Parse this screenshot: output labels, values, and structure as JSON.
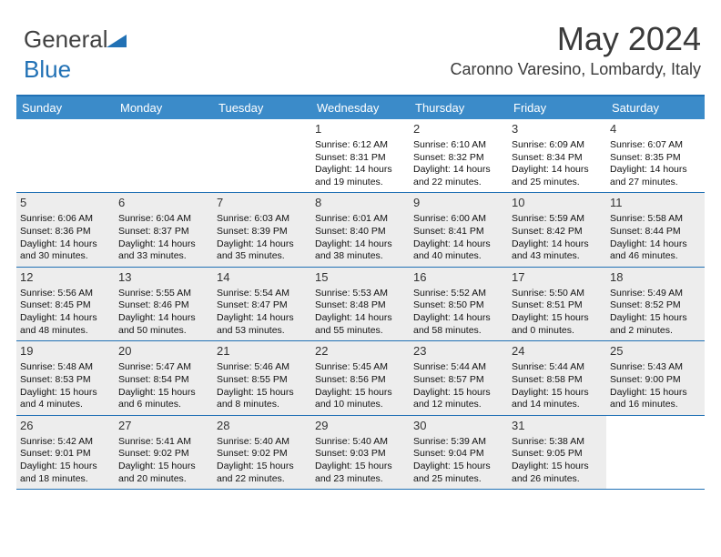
{
  "logo": {
    "part1": "General",
    "part2": "Blue"
  },
  "title": "May 2024",
  "location": "Caronno Varesino, Lombardy, Italy",
  "colors": {
    "header_bg": "#3b8bc9",
    "border": "#2171b5",
    "shaded": "#ededed",
    "white": "#ffffff"
  },
  "day_headers": [
    "Sunday",
    "Monday",
    "Tuesday",
    "Wednesday",
    "Thursday",
    "Friday",
    "Saturday"
  ],
  "weeks": [
    [
      {
        "num": "",
        "sunrise": "",
        "sunset": "",
        "daylight1": "",
        "daylight2": "",
        "shaded": false,
        "empty": true
      },
      {
        "num": "",
        "sunrise": "",
        "sunset": "",
        "daylight1": "",
        "daylight2": "",
        "shaded": false,
        "empty": true
      },
      {
        "num": "",
        "sunrise": "",
        "sunset": "",
        "daylight1": "",
        "daylight2": "",
        "shaded": false,
        "empty": true
      },
      {
        "num": "1",
        "sunrise": "Sunrise: 6:12 AM",
        "sunset": "Sunset: 8:31 PM",
        "daylight1": "Daylight: 14 hours",
        "daylight2": "and 19 minutes.",
        "shaded": false
      },
      {
        "num": "2",
        "sunrise": "Sunrise: 6:10 AM",
        "sunset": "Sunset: 8:32 PM",
        "daylight1": "Daylight: 14 hours",
        "daylight2": "and 22 minutes.",
        "shaded": false
      },
      {
        "num": "3",
        "sunrise": "Sunrise: 6:09 AM",
        "sunset": "Sunset: 8:34 PM",
        "daylight1": "Daylight: 14 hours",
        "daylight2": "and 25 minutes.",
        "shaded": false
      },
      {
        "num": "4",
        "sunrise": "Sunrise: 6:07 AM",
        "sunset": "Sunset: 8:35 PM",
        "daylight1": "Daylight: 14 hours",
        "daylight2": "and 27 minutes.",
        "shaded": false
      }
    ],
    [
      {
        "num": "5",
        "sunrise": "Sunrise: 6:06 AM",
        "sunset": "Sunset: 8:36 PM",
        "daylight1": "Daylight: 14 hours",
        "daylight2": "and 30 minutes.",
        "shaded": true
      },
      {
        "num": "6",
        "sunrise": "Sunrise: 6:04 AM",
        "sunset": "Sunset: 8:37 PM",
        "daylight1": "Daylight: 14 hours",
        "daylight2": "and 33 minutes.",
        "shaded": true
      },
      {
        "num": "7",
        "sunrise": "Sunrise: 6:03 AM",
        "sunset": "Sunset: 8:39 PM",
        "daylight1": "Daylight: 14 hours",
        "daylight2": "and 35 minutes.",
        "shaded": true
      },
      {
        "num": "8",
        "sunrise": "Sunrise: 6:01 AM",
        "sunset": "Sunset: 8:40 PM",
        "daylight1": "Daylight: 14 hours",
        "daylight2": "and 38 minutes.",
        "shaded": true
      },
      {
        "num": "9",
        "sunrise": "Sunrise: 6:00 AM",
        "sunset": "Sunset: 8:41 PM",
        "daylight1": "Daylight: 14 hours",
        "daylight2": "and 40 minutes.",
        "shaded": true
      },
      {
        "num": "10",
        "sunrise": "Sunrise: 5:59 AM",
        "sunset": "Sunset: 8:42 PM",
        "daylight1": "Daylight: 14 hours",
        "daylight2": "and 43 minutes.",
        "shaded": true
      },
      {
        "num": "11",
        "sunrise": "Sunrise: 5:58 AM",
        "sunset": "Sunset: 8:44 PM",
        "daylight1": "Daylight: 14 hours",
        "daylight2": "and 46 minutes.",
        "shaded": true
      }
    ],
    [
      {
        "num": "12",
        "sunrise": "Sunrise: 5:56 AM",
        "sunset": "Sunset: 8:45 PM",
        "daylight1": "Daylight: 14 hours",
        "daylight2": "and 48 minutes.",
        "shaded": true
      },
      {
        "num": "13",
        "sunrise": "Sunrise: 5:55 AM",
        "sunset": "Sunset: 8:46 PM",
        "daylight1": "Daylight: 14 hours",
        "daylight2": "and 50 minutes.",
        "shaded": true
      },
      {
        "num": "14",
        "sunrise": "Sunrise: 5:54 AM",
        "sunset": "Sunset: 8:47 PM",
        "daylight1": "Daylight: 14 hours",
        "daylight2": "and 53 minutes.",
        "shaded": true
      },
      {
        "num": "15",
        "sunrise": "Sunrise: 5:53 AM",
        "sunset": "Sunset: 8:48 PM",
        "daylight1": "Daylight: 14 hours",
        "daylight2": "and 55 minutes.",
        "shaded": true
      },
      {
        "num": "16",
        "sunrise": "Sunrise: 5:52 AM",
        "sunset": "Sunset: 8:50 PM",
        "daylight1": "Daylight: 14 hours",
        "daylight2": "and 58 minutes.",
        "shaded": true
      },
      {
        "num": "17",
        "sunrise": "Sunrise: 5:50 AM",
        "sunset": "Sunset: 8:51 PM",
        "daylight1": "Daylight: 15 hours",
        "daylight2": "and 0 minutes.",
        "shaded": true
      },
      {
        "num": "18",
        "sunrise": "Sunrise: 5:49 AM",
        "sunset": "Sunset: 8:52 PM",
        "daylight1": "Daylight: 15 hours",
        "daylight2": "and 2 minutes.",
        "shaded": true
      }
    ],
    [
      {
        "num": "19",
        "sunrise": "Sunrise: 5:48 AM",
        "sunset": "Sunset: 8:53 PM",
        "daylight1": "Daylight: 15 hours",
        "daylight2": "and 4 minutes.",
        "shaded": true
      },
      {
        "num": "20",
        "sunrise": "Sunrise: 5:47 AM",
        "sunset": "Sunset: 8:54 PM",
        "daylight1": "Daylight: 15 hours",
        "daylight2": "and 6 minutes.",
        "shaded": true
      },
      {
        "num": "21",
        "sunrise": "Sunrise: 5:46 AM",
        "sunset": "Sunset: 8:55 PM",
        "daylight1": "Daylight: 15 hours",
        "daylight2": "and 8 minutes.",
        "shaded": true
      },
      {
        "num": "22",
        "sunrise": "Sunrise: 5:45 AM",
        "sunset": "Sunset: 8:56 PM",
        "daylight1": "Daylight: 15 hours",
        "daylight2": "and 10 minutes.",
        "shaded": true
      },
      {
        "num": "23",
        "sunrise": "Sunrise: 5:44 AM",
        "sunset": "Sunset: 8:57 PM",
        "daylight1": "Daylight: 15 hours",
        "daylight2": "and 12 minutes.",
        "shaded": true
      },
      {
        "num": "24",
        "sunrise": "Sunrise: 5:44 AM",
        "sunset": "Sunset: 8:58 PM",
        "daylight1": "Daylight: 15 hours",
        "daylight2": "and 14 minutes.",
        "shaded": true
      },
      {
        "num": "25",
        "sunrise": "Sunrise: 5:43 AM",
        "sunset": "Sunset: 9:00 PM",
        "daylight1": "Daylight: 15 hours",
        "daylight2": "and 16 minutes.",
        "shaded": true
      }
    ],
    [
      {
        "num": "26",
        "sunrise": "Sunrise: 5:42 AM",
        "sunset": "Sunset: 9:01 PM",
        "daylight1": "Daylight: 15 hours",
        "daylight2": "and 18 minutes.",
        "shaded": true
      },
      {
        "num": "27",
        "sunrise": "Sunrise: 5:41 AM",
        "sunset": "Sunset: 9:02 PM",
        "daylight1": "Daylight: 15 hours",
        "daylight2": "and 20 minutes.",
        "shaded": true
      },
      {
        "num": "28",
        "sunrise": "Sunrise: 5:40 AM",
        "sunset": "Sunset: 9:02 PM",
        "daylight1": "Daylight: 15 hours",
        "daylight2": "and 22 minutes.",
        "shaded": true
      },
      {
        "num": "29",
        "sunrise": "Sunrise: 5:40 AM",
        "sunset": "Sunset: 9:03 PM",
        "daylight1": "Daylight: 15 hours",
        "daylight2": "and 23 minutes.",
        "shaded": true
      },
      {
        "num": "30",
        "sunrise": "Sunrise: 5:39 AM",
        "sunset": "Sunset: 9:04 PM",
        "daylight1": "Daylight: 15 hours",
        "daylight2": "and 25 minutes.",
        "shaded": true
      },
      {
        "num": "31",
        "sunrise": "Sunrise: 5:38 AM",
        "sunset": "Sunset: 9:05 PM",
        "daylight1": "Daylight: 15 hours",
        "daylight2": "and 26 minutes.",
        "shaded": true
      },
      {
        "num": "",
        "sunrise": "",
        "sunset": "",
        "daylight1": "",
        "daylight2": "",
        "shaded": false,
        "empty": true
      }
    ]
  ]
}
